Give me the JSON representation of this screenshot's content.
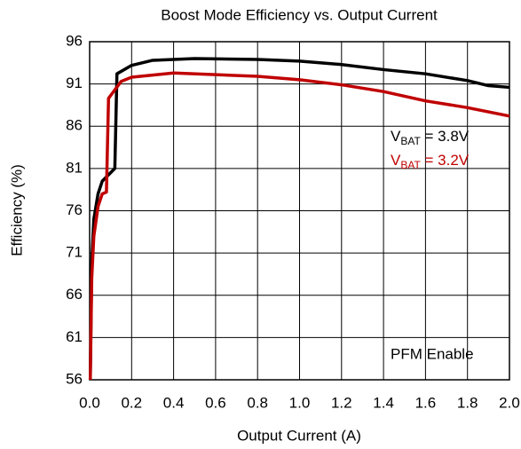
{
  "chart_data": {
    "type": "line",
    "title": "Boost Mode Efficiency vs. Output Current",
    "xlabel": "Output Current (A)",
    "ylabel": "Efficiency (%)",
    "xlim": [
      0,
      2
    ],
    "ylim": [
      56,
      96
    ],
    "xticks": [
      {
        "value": 0,
        "label": "0.0"
      },
      0.2,
      0.4,
      0.6,
      0.8,
      {
        "value": 1,
        "label": "1.0"
      },
      1.2,
      1.4,
      1.6,
      1.8,
      {
        "value": 2,
        "label": "2.0"
      }
    ],
    "yticks": [
      56,
      61,
      66,
      71,
      76,
      81,
      86,
      91,
      96
    ],
    "grid": true,
    "legend": "right",
    "annotation": "PFM Enable",
    "series": [
      {
        "name": "VBAT = 3.8V",
        "color": "#000000",
        "x": [
          0.003,
          0.01,
          0.02,
          0.04,
          0.06,
          0.1,
          0.12,
          0.13,
          0.2,
          0.3,
          0.5,
          0.8,
          1.0,
          1.2,
          1.4,
          1.6,
          1.8,
          1.9,
          2.0
        ],
        "values": [
          56,
          70,
          75,
          78,
          79.5,
          80.5,
          81,
          92.2,
          93.2,
          93.8,
          94,
          93.9,
          93.7,
          93.3,
          92.7,
          92.2,
          91.4,
          90.8,
          90.6
        ]
      },
      {
        "name": "VBAT = 3.2V",
        "color": "#c00000",
        "x": [
          0.003,
          0.01,
          0.02,
          0.04,
          0.06,
          0.08,
          0.09,
          0.15,
          0.2,
          0.4,
          0.6,
          0.8,
          1.0,
          1.2,
          1.4,
          1.6,
          1.8,
          2.0
        ],
        "values": [
          56,
          68,
          73,
          76.5,
          78,
          78.2,
          89.3,
          91.3,
          91.8,
          92.3,
          92.1,
          91.9,
          91.5,
          90.9,
          90.1,
          89,
          88.2,
          87.2
        ]
      }
    ]
  }
}
